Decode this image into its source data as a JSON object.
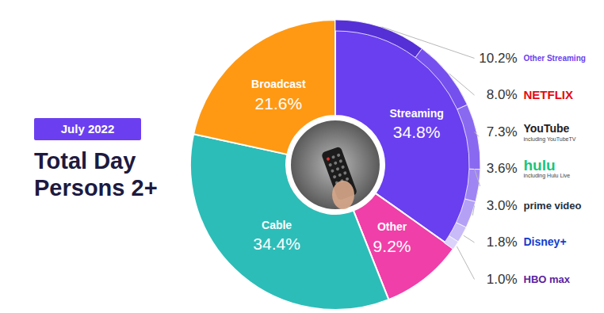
{
  "chart_data": {
    "type": "donut",
    "title": "Total Day Persons 2+",
    "subtitle": "July 2022",
    "categories": [
      "Streaming",
      "Other",
      "Cable",
      "Broadcast"
    ],
    "values": [
      34.8,
      9.2,
      34.4,
      21.6
    ],
    "value_labels": [
      "34.8%",
      "9.2%",
      "34.4%",
      "21.6%"
    ],
    "colors": [
      "#6a3ff0",
      "#f03fa8",
      "#2dbdb8",
      "#ff9913"
    ],
    "data_labels": true,
    "breakdown": {
      "parent": "Streaming",
      "categories": [
        "Other Streaming",
        "NETFLIX",
        "YouTube",
        "hulu",
        "prime video",
        "Disney+",
        "HBO max"
      ],
      "notes": [
        null,
        null,
        "including YouTubeTV",
        "including Hulu Live",
        null,
        null,
        null
      ],
      "values": [
        10.2,
        8.0,
        7.3,
        3.6,
        3.0,
        1.8,
        1.0
      ],
      "value_labels": [
        "10.2%",
        "8.0%",
        "7.3%",
        "3.6%",
        "3.0%",
        "1.8%",
        "1.0%"
      ],
      "colors": [
        "#5530d6",
        "#7650ee",
        "#8a69f1",
        "#9f85f3",
        "#b4a1f6",
        "#c8bbf8",
        "#dcd3fb"
      ]
    }
  }
}
